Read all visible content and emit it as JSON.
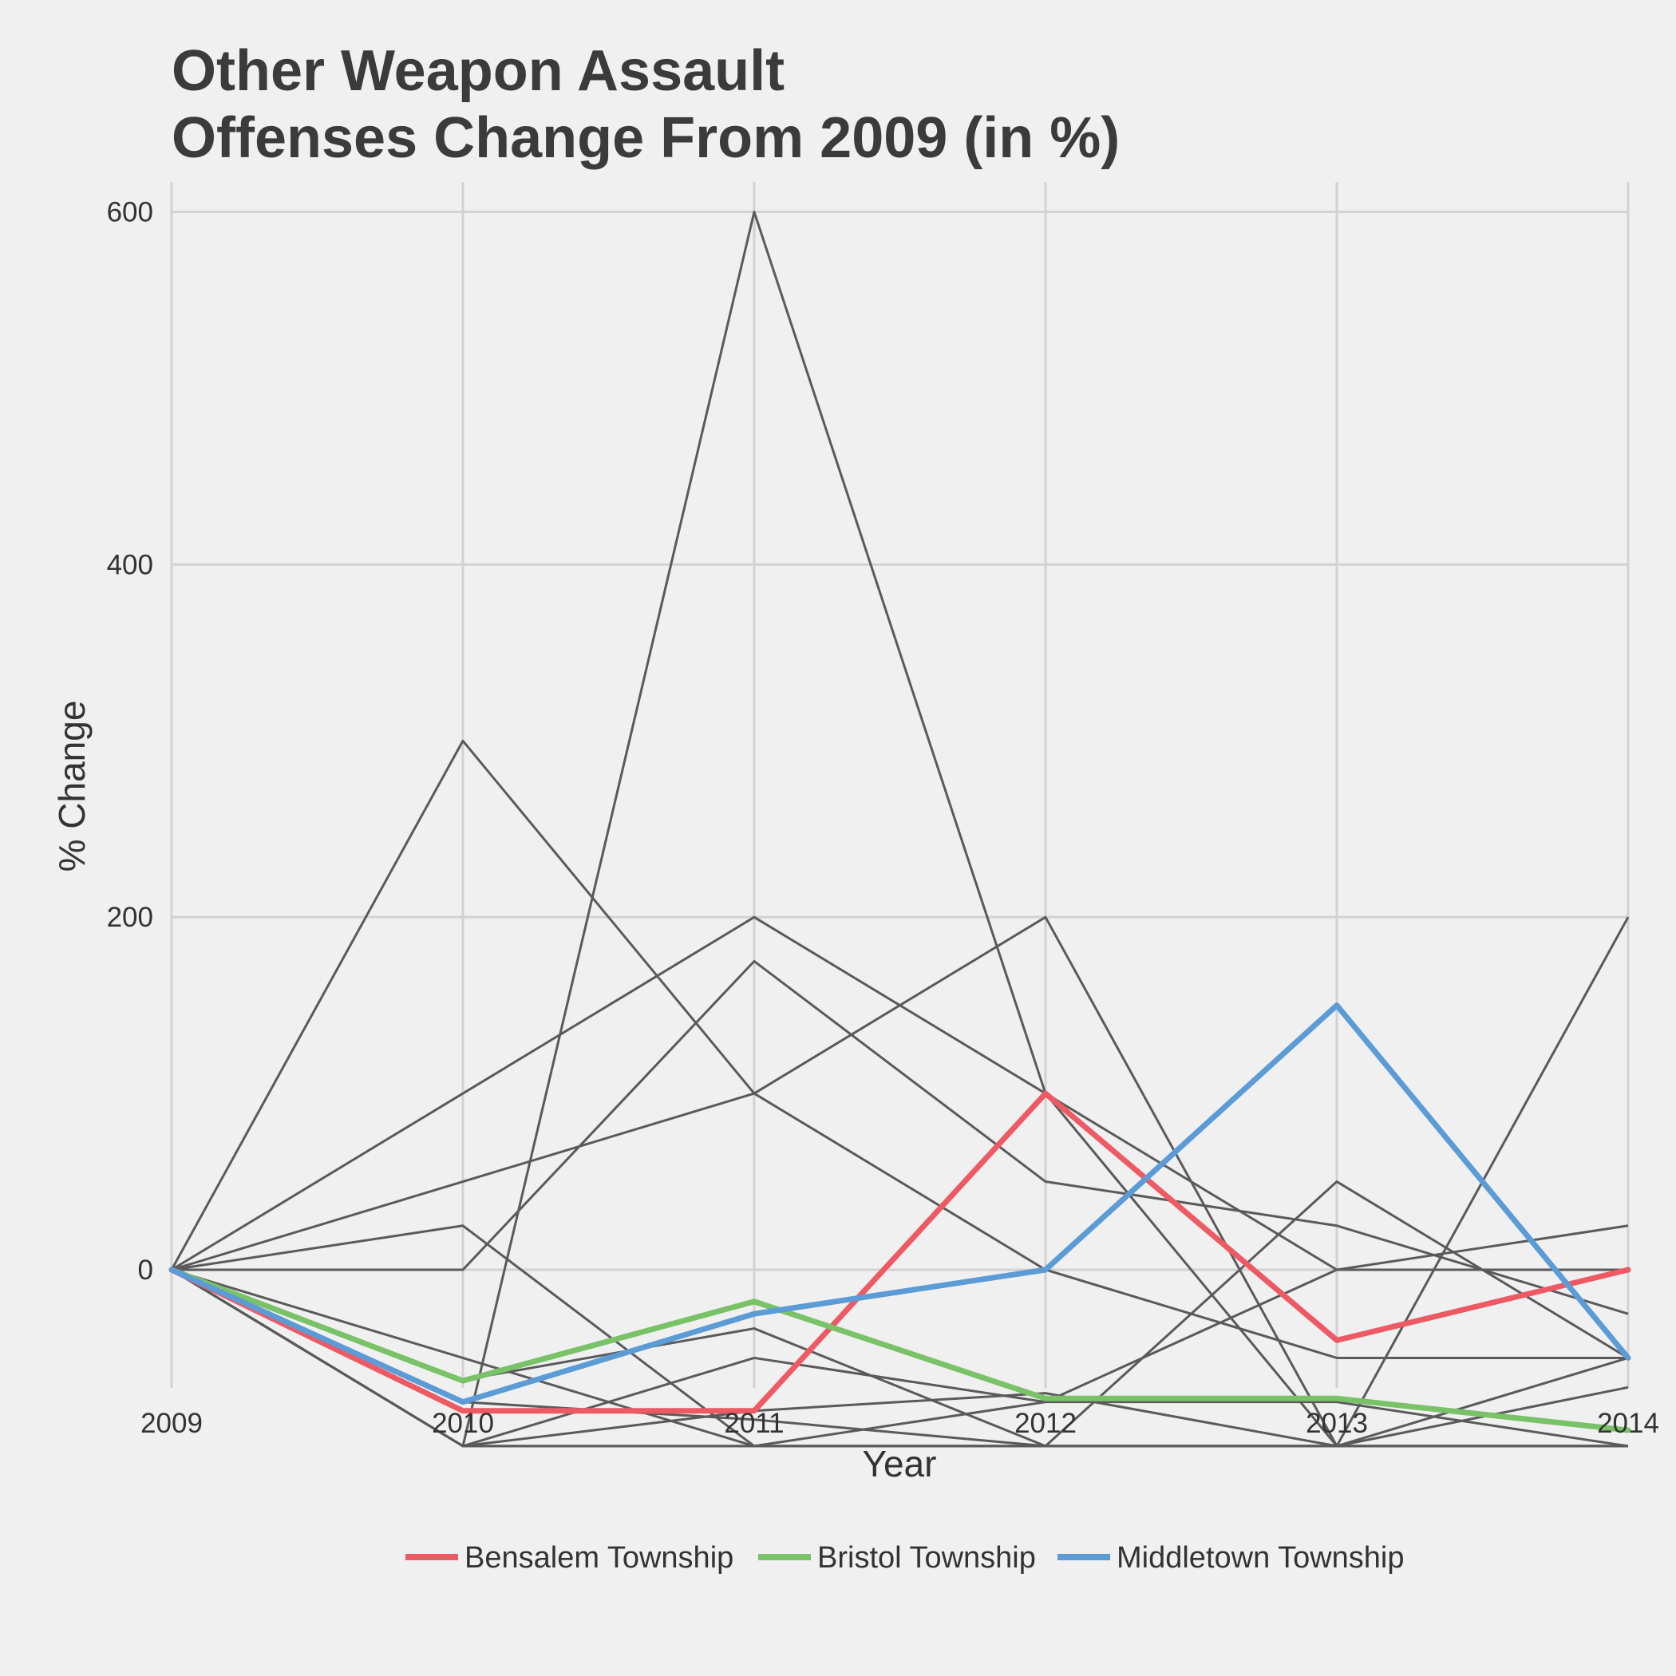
{
  "chart_data": {
    "type": "line",
    "title": [
      "Other Weapon Assault",
      "Offenses Change From 2009 (in %)"
    ],
    "xlabel": "Year",
    "ylabel": "% Change",
    "x": [
      2009,
      2010,
      2011,
      2012,
      2013,
      2014
    ],
    "xlim": [
      2009,
      2014
    ],
    "ylim": [
      -67,
      617
    ],
    "y_ticks": [
      0,
      200,
      400,
      600
    ],
    "grid": true,
    "legend_position": "bottom",
    "background_series_color": "#5a5a5a",
    "background_series": [
      [
        0,
        -100,
        600,
        100,
        -100,
        -100
      ],
      [
        0,
        300,
        100,
        0,
        -50,
        -50
      ],
      [
        0,
        100,
        200,
        100,
        0,
        0
      ],
      [
        0,
        50,
        100,
        200,
        -100,
        -100
      ],
      [
        0,
        0,
        175,
        50,
        25,
        -25
      ],
      [
        0,
        25,
        -100,
        -100,
        -100,
        -50
      ],
      [
        0,
        -50,
        -100,
        -100,
        50,
        -50
      ],
      [
        0,
        -62.5,
        -33.3,
        -100,
        -100,
        200
      ],
      [
        0,
        -100,
        -50,
        -75,
        0,
        25
      ],
      [
        0,
        -100,
        -80,
        -70,
        -100,
        -66.7
      ],
      [
        0,
        -100,
        -100,
        -75,
        -75,
        -100
      ],
      [
        0,
        -75,
        -85,
        -100,
        -100,
        -100
      ],
      [
        0,
        -100,
        -100,
        -100,
        -100,
        -100
      ]
    ],
    "series": [
      {
        "name": "Bensalem Township",
        "color": "#ee5a64",
        "values": [
          0,
          -80,
          -80,
          100,
          -40,
          0
        ]
      },
      {
        "name": "Bristol Township",
        "color": "#79c268",
        "values": [
          0,
          -63,
          -18,
          -73,
          -73,
          -91
        ]
      },
      {
        "name": "Middletown Township",
        "color": "#5b9bd6",
        "values": [
          0,
          -75,
          -25,
          0,
          150,
          -50
        ]
      }
    ]
  }
}
